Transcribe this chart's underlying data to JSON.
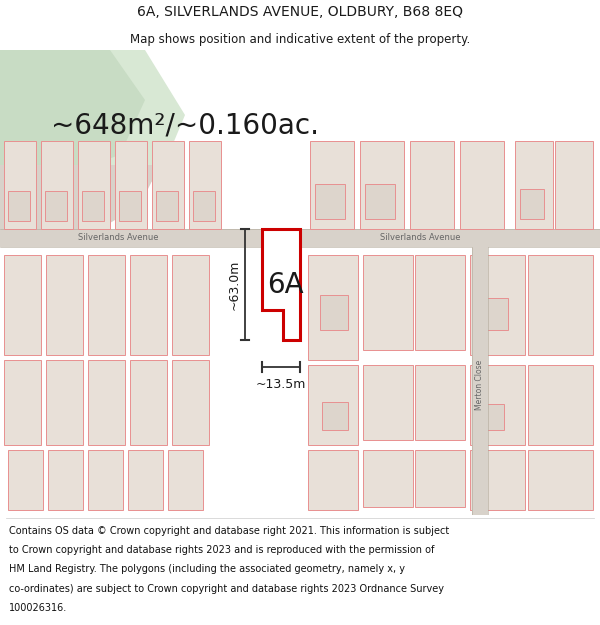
{
  "title": "6A, SILVERLANDS AVENUE, OLDBURY, B68 8EQ",
  "subtitle": "Map shows position and indicative extent of the property.",
  "area_text": "~648m²/~0.160ac.",
  "dim_vertical": "~63.0m",
  "dim_horizontal": "~13.5m",
  "label_6A": "6A",
  "street_left": "Silverlands Avenue",
  "street_right": "Silverlands Avenue",
  "street_bottom": "Merton Close",
  "footer_lines": [
    "Contains OS data © Crown copyright and database right 2021. This information is subject",
    "to Crown copyright and database rights 2023 and is reproduced with the permission of",
    "HM Land Registry. The polygons (including the associated geometry, namely x, y",
    "co-ordinates) are subject to Crown copyright and database rights 2023 Ordnance Survey",
    "100026316."
  ],
  "map_bg": "#f2eeea",
  "road_fill": "#d8d2ca",
  "property_fill": "#ffffff",
  "property_stroke": "#cc0000",
  "bldg_fill": "#e8e0d8",
  "bldg_stroke": "#e89090",
  "park_color": "#d8e8d4",
  "park_color2": "#c8dcc4",
  "dark_text": "#1a1a1a",
  "road_text": "#666666",
  "dim_line_color": "#333333",
  "title_fontsize": 10,
  "subtitle_fontsize": 8.5
}
